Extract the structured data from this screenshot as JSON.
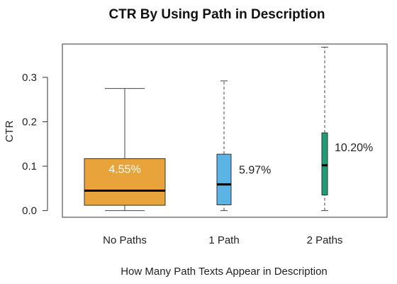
{
  "chart_data": {
    "type": "box",
    "title": "CTR By Using Path in Description",
    "xlabel": "How Many Path Texts Appear in Description",
    "ylabel": "CTR",
    "ylim": [
      -0.015,
      0.375
    ],
    "yticks": [
      0.0,
      0.1,
      0.2,
      0.3
    ],
    "ytick_labels": [
      "0.0",
      "0.1",
      "0.2",
      "0.3"
    ],
    "categories": [
      "No Paths",
      "1 Path",
      "2 Paths"
    ],
    "boxes": [
      {
        "category": "No Paths",
        "whisker_low": 0.0,
        "q1": 0.012,
        "median": 0.045,
        "q3": 0.117,
        "whisker_high": 0.275,
        "color": "#E8A33A",
        "label": "4.55%",
        "label_color": "#ffffff",
        "whisker_style": "solid"
      },
      {
        "category": "1 Path",
        "whisker_low": 0.0,
        "q1": 0.013,
        "median": 0.059,
        "q3": 0.127,
        "whisker_high": 0.292,
        "color": "#5AB4E5",
        "label": "5.97%",
        "label_color": "#222222",
        "whisker_style": "dashed"
      },
      {
        "category": "2 Paths",
        "whisker_low": 0.0,
        "q1": 0.035,
        "median": 0.102,
        "q3": 0.175,
        "whisker_high": 0.368,
        "color": "#1E9E77",
        "label": "10.20%",
        "label_color": "#222222",
        "whisker_style": "dashed"
      }
    ],
    "grid": false,
    "legend": "none"
  }
}
